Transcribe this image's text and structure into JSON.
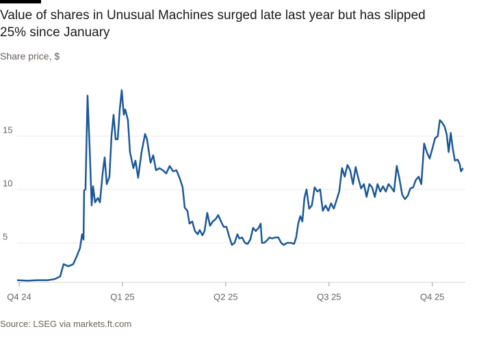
{
  "chart_data": {
    "type": "line",
    "title": "Value of shares in Unusual Machines surged late last year but has slipped 25% since January",
    "subtitle": "Share price, $",
    "source": "Source: LSEG via markets.ft.com",
    "xlim": [
      -0.02,
      4.3
    ],
    "xticks": [
      {
        "value": 0,
        "label": "Q4 24"
      },
      {
        "value": 1,
        "label": "Q1 25"
      },
      {
        "value": 2,
        "label": "Q2 25"
      },
      {
        "value": 3,
        "label": "Q3 25"
      },
      {
        "value": 4,
        "label": "Q4 25"
      }
    ],
    "ylim": [
      1.3,
      20
    ],
    "yticks": [
      5,
      10,
      15
    ],
    "grid": true,
    "x": [
      -0.02,
      0.079,
      0.179,
      0.278,
      0.344,
      0.397,
      0.43,
      0.477,
      0.523,
      0.556,
      0.589,
      0.609,
      0.623,
      0.629,
      0.642,
      0.662,
      0.682,
      0.702,
      0.715,
      0.735,
      0.762,
      0.782,
      0.808,
      0.828,
      0.848,
      0.874,
      0.894,
      0.914,
      0.934,
      0.954,
      0.974,
      0.993,
      1.013,
      1.027,
      1.053,
      1.073,
      1.106,
      1.126,
      1.152,
      1.185,
      1.219,
      1.238,
      1.272,
      1.298,
      1.325,
      1.358,
      1.391,
      1.424,
      1.457,
      1.49,
      1.523,
      1.556,
      1.583,
      1.603,
      1.629,
      1.649,
      1.676,
      1.702,
      1.729,
      1.748,
      1.775,
      1.795,
      1.821,
      1.848,
      1.874,
      1.901,
      1.927,
      1.954,
      1.98,
      2.007,
      2.033,
      2.06,
      2.086,
      2.113,
      2.132,
      2.159,
      2.185,
      2.212,
      2.238,
      2.265,
      2.291,
      2.318,
      2.338,
      2.351,
      2.371,
      2.397,
      2.424,
      2.45,
      2.477,
      2.51,
      2.536,
      2.563,
      2.596,
      2.629,
      2.662,
      2.682,
      2.702,
      2.722,
      2.742,
      2.762,
      2.782,
      2.808,
      2.834,
      2.861,
      2.887,
      2.914,
      2.94,
      2.967,
      2.993,
      3.02,
      3.046,
      3.073,
      3.099,
      3.126,
      3.152,
      3.179,
      3.205,
      3.232,
      3.258,
      3.285,
      3.311,
      3.338,
      3.364,
      3.391,
      3.417,
      3.444,
      3.47,
      3.497,
      3.523,
      3.55,
      3.576,
      3.603,
      3.629,
      3.656,
      3.682,
      3.709,
      3.735,
      3.762,
      3.788,
      3.815,
      3.841,
      3.868,
      3.894,
      3.921,
      3.947,
      3.974,
      4.0,
      4.027,
      4.053,
      4.073,
      4.093,
      4.119,
      4.139,
      4.159,
      4.179,
      4.199,
      4.219,
      4.245,
      4.265,
      4.278,
      4.298
    ],
    "series": [
      {
        "name": "Unusual Machines",
        "color": "#1b5897",
        "values": [
          1.5,
          1.45,
          1.5,
          1.5,
          1.6,
          1.85,
          3.0,
          2.8,
          3.0,
          3.7,
          4.5,
          5.8,
          5.3,
          9.9,
          10.0,
          18.8,
          14.0,
          8.5,
          10.3,
          8.8,
          9.2,
          8.8,
          11.5,
          13.0,
          10.5,
          11.2,
          15.0,
          17.0,
          14.7,
          14.7,
          17.5,
          19.3,
          17.0,
          17.5,
          16.5,
          13.5,
          12.0,
          12.7,
          11.1,
          13.5,
          15.2,
          14.7,
          12.5,
          13.2,
          11.8,
          12.0,
          11.8,
          11.5,
          12.2,
          11.7,
          11.8,
          11.0,
          10.2,
          8.3,
          8.0,
          6.8,
          7.0,
          6.1,
          5.8,
          6.2,
          5.7,
          6.1,
          7.8,
          6.6,
          7.0,
          7.2,
          7.6,
          7.0,
          6.5,
          6.5,
          5.6,
          4.8,
          5.0,
          5.8,
          5.4,
          5.5,
          5.0,
          4.9,
          5.3,
          6.4,
          6.1,
          6.4,
          6.8,
          5.0,
          5.0,
          5.2,
          5.5,
          5.4,
          5.5,
          5.5,
          5.0,
          4.8,
          5.0,
          5.0,
          4.9,
          5.5,
          6.8,
          7.5,
          7.0,
          9.2,
          10.0,
          8.2,
          8.5,
          10.2,
          9.8,
          10.0,
          8.0,
          8.5,
          8.0,
          8.7,
          8.2,
          9.0,
          9.8,
          12.0,
          11.2,
          12.3,
          11.8,
          10.5,
          12.1,
          11.0,
          10.1,
          10.5,
          9.3,
          10.5,
          10.2,
          9.3,
          10.5,
          9.8,
          10.3,
          9.8,
          10.5,
          10.2,
          9.8,
          12.2,
          11.0,
          9.5,
          9.1,
          9.4,
          10.1,
          10.2,
          10.9,
          11.2,
          10.5,
          14.3,
          13.5,
          12.9,
          13.8,
          14.8,
          15.0,
          16.5,
          16.3,
          15.9,
          15.2,
          13.5,
          15.3,
          13.8,
          12.7,
          12.8,
          12.4,
          11.7,
          12.0
        ]
      }
    ]
  }
}
